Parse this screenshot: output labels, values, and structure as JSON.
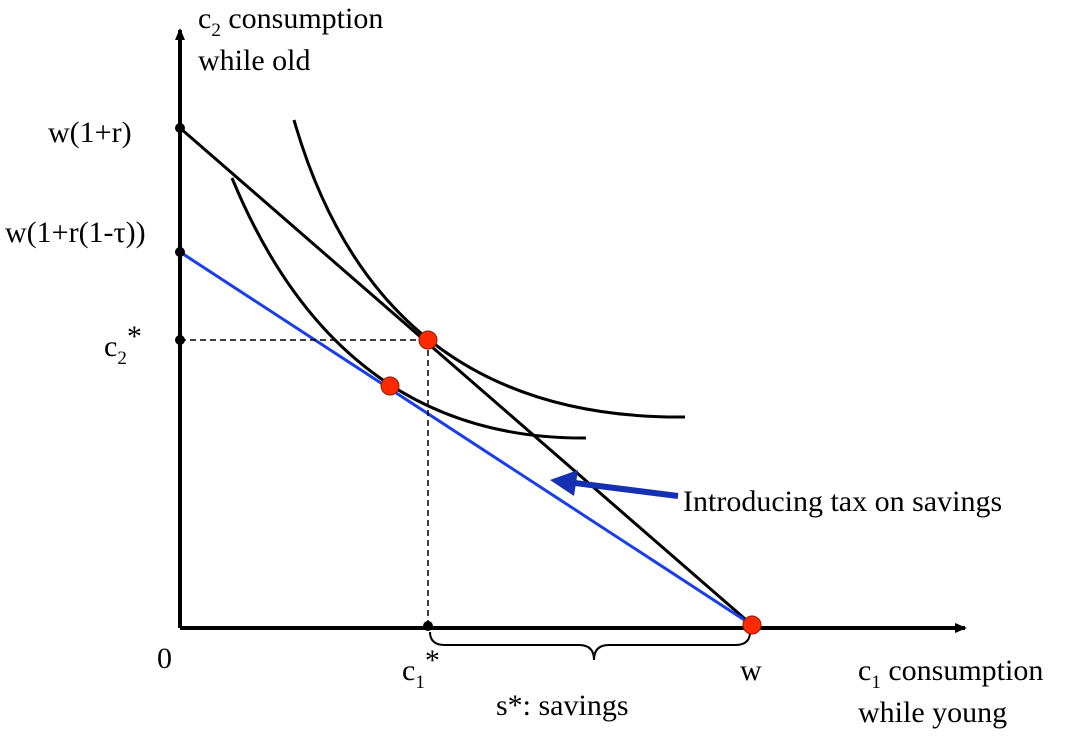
{
  "axes": {
    "y_label": {
      "main": "c",
      "sub": "2",
      "rest": " consumption",
      "line2": "while old"
    },
    "x_label": {
      "main": "c",
      "sub": "1",
      "rest": " consumption",
      "line2": "while young"
    },
    "origin": "0"
  },
  "y_ticks": {
    "top": "w(1+r)",
    "taxed": "w(1+r(1-τ))",
    "c2_star": {
      "main": "c",
      "sub": "2",
      "rest": "*"
    }
  },
  "x_ticks": {
    "c1_star": {
      "main": "c",
      "sub": "1",
      "rest": "*"
    },
    "w": "w"
  },
  "annotations": {
    "tax": "Introducing tax on savings",
    "savings": "s*: savings"
  },
  "colors": {
    "budget_line": "#000000",
    "taxed_budget_line": "#1a3ee8",
    "arrow": "#1530b0",
    "optimum_point": "#ff2a00"
  }
}
